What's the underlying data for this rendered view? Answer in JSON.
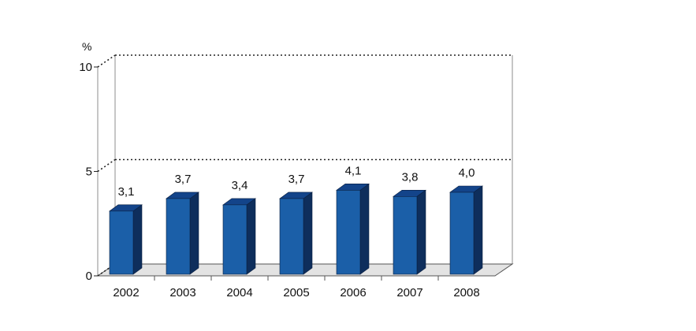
{
  "chart_data": {
    "type": "bar",
    "title": "",
    "xlabel": "",
    "ylabel": "%",
    "ylim": [
      0,
      10
    ],
    "yticks": [
      "0",
      "5",
      "10"
    ],
    "categories": [
      "2002",
      "2003",
      "2004",
      "2005",
      "2006",
      "2007",
      "2008"
    ],
    "values": [
      3.1,
      3.7,
      3.4,
      3.7,
      4.1,
      3.8,
      4.0
    ],
    "value_labels": [
      "3,1",
      "3,7",
      "3,4",
      "3,7",
      "4,1",
      "3,8",
      "4,0"
    ],
    "grid": "dotted lines at 5 and 10",
    "bar_style": "3d",
    "colors": {
      "bar_front": "#1b5fa8",
      "bar_side": "#0e2e5c",
      "bar_top": "#13448a",
      "floor": "#e3e3e3"
    }
  }
}
